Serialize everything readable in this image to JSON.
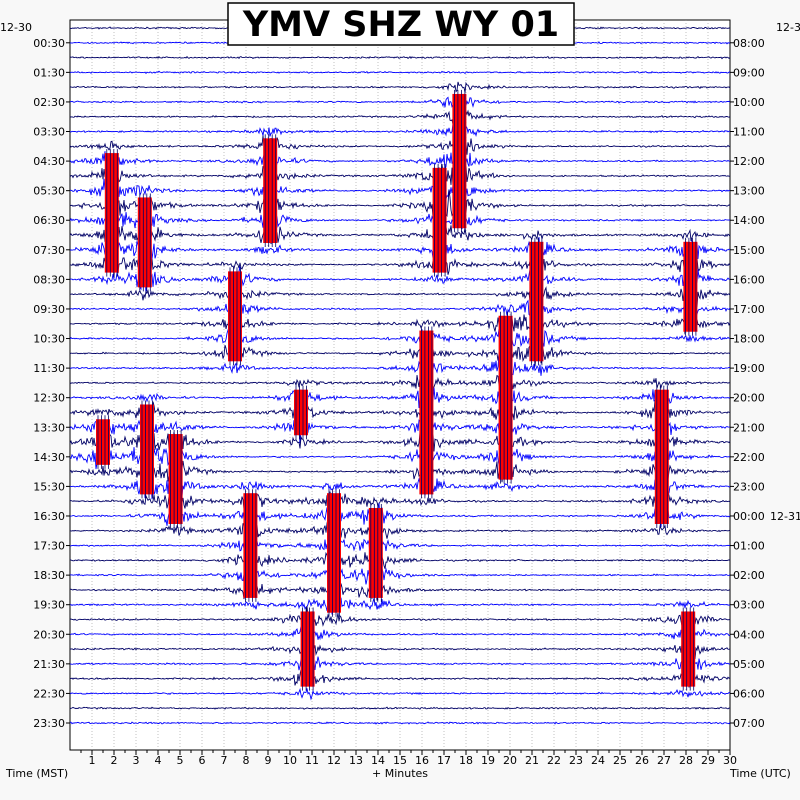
{
  "chart_data": {
    "type": "line",
    "title": "YMV SHZ WY 01",
    "left_axis_label": "Time (MST)",
    "right_axis_label": "Time (UTC)",
    "x_axis_label": "+ Minutes",
    "left_date": "12-30",
    "right_date_top": "12-3",
    "right_date_mid": "12-31",
    "xlim": [
      0,
      30
    ],
    "x_ticks": [
      "1",
      "2",
      "3",
      "4",
      "5",
      "6",
      "7",
      "8",
      "9",
      "10",
      "11",
      "12",
      "13",
      "14",
      "15",
      "16",
      "17",
      "18",
      "19",
      "20",
      "21",
      "22",
      "23",
      "24",
      "25",
      "26",
      "27",
      "28",
      "29",
      "30"
    ],
    "left_ticks": [
      "00:30",
      "01:30",
      "02:30",
      "03:30",
      "04:30",
      "05:30",
      "06:30",
      "07:30",
      "08:30",
      "09:30",
      "10:30",
      "11:30",
      "12:30",
      "13:30",
      "14:30",
      "15:30",
      "16:30",
      "17:30",
      "18:30",
      "19:30",
      "20:30",
      "21:30",
      "22:30",
      "23:30"
    ],
    "right_ticks": [
      "08:00",
      "09:00",
      "10:00",
      "11:00",
      "12:00",
      "13:00",
      "14:00",
      "15:00",
      "16:00",
      "17:00",
      "18:00",
      "19:00",
      "20:00",
      "21:00",
      "22:00",
      "23:00",
      "00:00",
      "01:00",
      "02:00",
      "03:00",
      "04:00",
      "05:00",
      "06:00",
      "07:00"
    ],
    "trace_count": 48,
    "trace_colors": [
      "#000066",
      "#0000ff"
    ],
    "clip_color": "#ff0000",
    "events": [
      {
        "minute": 1.9,
        "row_start": 9,
        "row_end": 16
      },
      {
        "minute": 3.4,
        "row_start": 12,
        "row_end": 17
      },
      {
        "minute": 9.1,
        "row_start": 8,
        "row_end": 14
      },
      {
        "minute": 17.7,
        "row_start": 5,
        "row_end": 13
      },
      {
        "minute": 16.8,
        "row_start": 10,
        "row_end": 16
      },
      {
        "minute": 7.5,
        "row_start": 17,
        "row_end": 22
      },
      {
        "minute": 21.2,
        "row_start": 15,
        "row_end": 22
      },
      {
        "minute": 28.2,
        "row_start": 15,
        "row_end": 20
      },
      {
        "minute": 16.2,
        "row_start": 21,
        "row_end": 31
      },
      {
        "minute": 19.8,
        "row_start": 20,
        "row_end": 30
      },
      {
        "minute": 3.5,
        "row_start": 26,
        "row_end": 31
      },
      {
        "minute": 4.8,
        "row_start": 28,
        "row_end": 33
      },
      {
        "minute": 26.9,
        "row_start": 25,
        "row_end": 33
      },
      {
        "minute": 8.2,
        "row_start": 32,
        "row_end": 38
      },
      {
        "minute": 12.0,
        "row_start": 32,
        "row_end": 39
      },
      {
        "minute": 13.9,
        "row_start": 33,
        "row_end": 38
      },
      {
        "minute": 10.8,
        "row_start": 40,
        "row_end": 44
      },
      {
        "minute": 28.1,
        "row_start": 40,
        "row_end": 44
      },
      {
        "minute": 10.5,
        "row_start": 25,
        "row_end": 27
      },
      {
        "minute": 1.5,
        "row_start": 27,
        "row_end": 29
      }
    ]
  }
}
